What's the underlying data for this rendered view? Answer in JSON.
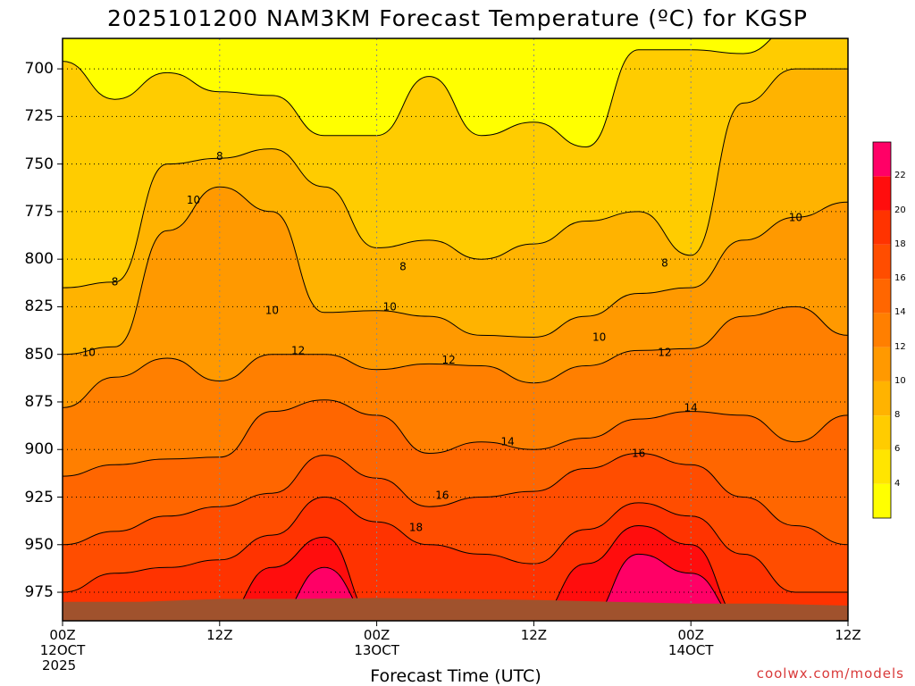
{
  "title": "2025101200 NAM3KM Forecast Temperature (ºC) for KGSP",
  "credit": "coolwx.com/models",
  "colors": {
    "ground": "#a0522d",
    "bands": [
      "#ffff00",
      "#ffe500",
      "#ffcc00",
      "#ffb300",
      "#ff9900",
      "#ff7f00",
      "#ff6600",
      "#ff4d00",
      "#ff3300",
      "#ff0d0d",
      "#ff0066"
    ]
  },
  "chart_data": {
    "type": "heatmap",
    "title": "2025101200 NAM3KM Forecast Temperature (ºC) for KGSP",
    "xlabel": "Forecast Time (UTC)",
    "ylabel": "",
    "x_ticks": [
      {
        "hour": 0,
        "line1": "00Z",
        "line2": "12OCT",
        "line3": "2025"
      },
      {
        "hour": 12,
        "line1": "12Z",
        "line2": "",
        "line3": ""
      },
      {
        "hour": 24,
        "line1": "00Z",
        "line2": "13OCT",
        "line3": ""
      },
      {
        "hour": 36,
        "line1": "12Z",
        "line2": "",
        "line3": ""
      },
      {
        "hour": 48,
        "line1": "00Z",
        "line2": "14OCT",
        "line3": ""
      },
      {
        "hour": 60,
        "line1": "12Z",
        "line2": "",
        "line3": ""
      }
    ],
    "xlim_hours": [
      0,
      60
    ],
    "y_axis": "pressure_hPa",
    "ylim": [
      684,
      990
    ],
    "y_ticks": [
      700,
      725,
      750,
      775,
      800,
      825,
      850,
      875,
      900,
      925,
      950,
      975
    ],
    "grid": true,
    "colorbar": {
      "placement": "right",
      "levels": [
        4,
        6,
        8,
        10,
        12,
        14,
        16,
        18,
        20,
        22
      ],
      "labels": [
        "4",
        "6",
        "8",
        "10",
        "12",
        "14",
        "16",
        "18",
        "20",
        "22"
      ]
    },
    "contour_levels": [
      8,
      10,
      12,
      14,
      16,
      18
    ],
    "contour_labels": [
      {
        "value": 8,
        "hour": 12.0,
        "p": 746
      },
      {
        "value": 8,
        "hour": 4.0,
        "p": 812
      },
      {
        "value": 8,
        "hour": 26.0,
        "p": 804
      },
      {
        "value": 8,
        "hour": 46.0,
        "p": 802
      },
      {
        "value": 10,
        "hour": 10.0,
        "p": 769
      },
      {
        "value": 10,
        "hour": 2.0,
        "p": 849
      },
      {
        "value": 10,
        "hour": 16.0,
        "p": 827
      },
      {
        "value": 10,
        "hour": 25.0,
        "p": 825
      },
      {
        "value": 10,
        "hour": 41.0,
        "p": 841
      },
      {
        "value": 10,
        "hour": 56.0,
        "p": 778
      },
      {
        "value": 12,
        "hour": 18.0,
        "p": 848
      },
      {
        "value": 12,
        "hour": 29.5,
        "p": 853
      },
      {
        "value": 12,
        "hour": 46.0,
        "p": 849
      },
      {
        "value": 14,
        "hour": 34.0,
        "p": 896
      },
      {
        "value": 14,
        "hour": 48.0,
        "p": 878
      },
      {
        "value": 16,
        "hour": 29.0,
        "p": 924
      },
      {
        "value": 16,
        "hour": 44.0,
        "p": 902
      },
      {
        "value": 18,
        "hour": 27.0,
        "p": 941
      }
    ],
    "isotherm_profiles": {
      "hours": [
        0,
        4,
        8,
        12,
        16,
        20,
        24,
        28,
        32,
        36,
        40,
        44,
        48,
        52,
        56,
        60
      ],
      "isotherms": [
        {
          "value": 6,
          "p": [
            696,
            716,
            702,
            712,
            714,
            735,
            735,
            704,
            735,
            728,
            741,
            690,
            690,
            692,
            678,
            678
          ]
        },
        {
          "value": 8,
          "p": [
            815,
            812,
            750,
            747,
            742,
            762,
            794,
            790,
            800,
            792,
            780,
            775,
            798,
            718,
            700,
            700
          ]
        },
        {
          "value": 10,
          "p": [
            850,
            846,
            785,
            762,
            775,
            828,
            827,
            830,
            840,
            841,
            830,
            818,
            815,
            790,
            778,
            770
          ]
        },
        {
          "value": 12,
          "p": [
            878,
            862,
            852,
            864,
            850,
            850,
            858,
            855,
            856,
            865,
            856,
            848,
            847,
            830,
            825,
            840
          ]
        },
        {
          "value": 14,
          "p": [
            914,
            908,
            905,
            904,
            880,
            874,
            882,
            902,
            896,
            900,
            894,
            884,
            880,
            882,
            896,
            882
          ]
        },
        {
          "value": 16,
          "p": [
            950,
            943,
            935,
            930,
            923,
            903,
            915,
            930,
            925,
            922,
            910,
            902,
            908,
            925,
            940,
            950
          ]
        },
        {
          "value": 18,
          "p": [
            975,
            965,
            962,
            958,
            945,
            925,
            938,
            950,
            955,
            960,
            942,
            928,
            935,
            955,
            975,
            975
          ]
        },
        {
          "value": 20,
          "p": [
            990,
            990,
            990,
            990,
            962,
            946,
            990,
            990,
            990,
            990,
            960,
            940,
            950,
            990,
            990,
            990
          ]
        },
        {
          "value": 22,
          "p": [
            990,
            990,
            990,
            990,
            990,
            962,
            990,
            990,
            990,
            990,
            990,
            955,
            965,
            990,
            990,
            990
          ]
        }
      ]
    }
  }
}
